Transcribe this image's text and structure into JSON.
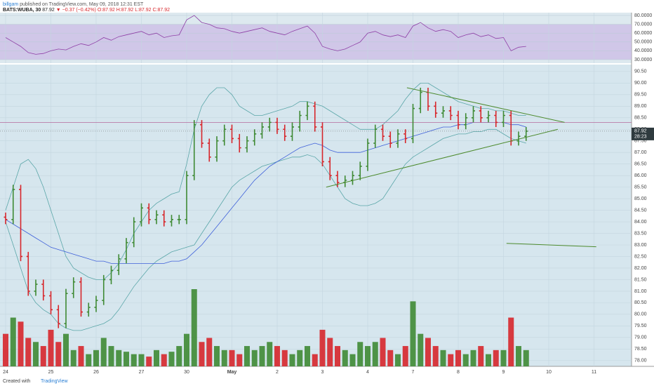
{
  "header": {
    "author": "billgam",
    "published": "published on TradingView.com, May 09, 2018 12:31 EST",
    "symbol": "BATS:WUBA, 30",
    "price": "87.92",
    "arrow": "▼",
    "change": "−0.37 (−0.42%)",
    "ohlc": "O:87.92 H:87.92 L:87.92 C:87.92"
  },
  "footer": {
    "created": "Created with",
    "brand": "TradingView"
  },
  "chart_data": {
    "type": "ohlc",
    "categories": [
      "24",
      null,
      null,
      null,
      null,
      null,
      "25",
      null,
      null,
      null,
      null,
      null,
      "26",
      null,
      null,
      null,
      null,
      null,
      "27",
      null,
      null,
      null,
      null,
      null,
      "30",
      null,
      null,
      null,
      null,
      null,
      "May",
      null,
      null,
      null,
      null,
      null,
      "2",
      null,
      null,
      null,
      null,
      null,
      "3",
      null,
      null,
      null,
      null,
      null,
      "4",
      null,
      null,
      null,
      null,
      null,
      "7",
      null,
      null,
      null,
      null,
      null,
      "8",
      null,
      null,
      null,
      null,
      null,
      "9",
      null,
      null,
      null,
      null,
      null,
      "10",
      null,
      null,
      null,
      null,
      null,
      "11",
      null,
      null,
      null,
      null,
      null
    ],
    "open": [
      84.2,
      84.1,
      85.4,
      82.5,
      81.0,
      81.3,
      80.8,
      80.2,
      79.6,
      80.9,
      81.4,
      80.1,
      80.3,
      80.6,
      81.5,
      81.9,
      82.4,
      83.1,
      84.0,
      84.6,
      84.1,
      84.3,
      84.0,
      84.1,
      84.1,
      86.0,
      88.2,
      87.4,
      86.8,
      87.5,
      88.0,
      87.6,
      87.2,
      87.5,
      87.8,
      88.1,
      88.3,
      88.0,
      87.7,
      88.1,
      88.6,
      89.0,
      88.1,
      86.6,
      86.0,
      85.7,
      85.8,
      86.0,
      86.4,
      87.4,
      88.0,
      87.7,
      87.4,
      87.8,
      87.6,
      88.9,
      89.6,
      89.0,
      88.7,
      88.8,
      88.6,
      88.2,
      88.5,
      88.8,
      88.5,
      88.6,
      88.3,
      88.6,
      87.5,
      87.7,
      null,
      null,
      null,
      null,
      null,
      null,
      null,
      null,
      null,
      null,
      null,
      null,
      null,
      null
    ],
    "high": [
      84.4,
      85.6,
      85.6,
      82.7,
      81.5,
      81.5,
      81.0,
      80.4,
      81.1,
      81.6,
      81.6,
      80.5,
      80.8,
      81.7,
      82.1,
      82.6,
      83.3,
      84.2,
      84.8,
      84.8,
      84.5,
      84.5,
      84.3,
      84.3,
      86.2,
      88.4,
      88.4,
      87.6,
      87.7,
      88.2,
      88.2,
      87.8,
      87.7,
      88.0,
      88.3,
      88.5,
      88.5,
      88.2,
      88.3,
      88.8,
      89.2,
      89.2,
      88.3,
      86.8,
      86.2,
      86.0,
      86.2,
      86.6,
      87.6,
      88.2,
      88.2,
      87.9,
      88.0,
      88.0,
      89.1,
      89.8,
      89.8,
      89.2,
      89.0,
      89.0,
      88.8,
      88.7,
      89.0,
      89.0,
      88.8,
      88.8,
      88.8,
      88.8,
      87.9,
      88.1,
      null,
      null,
      null,
      null,
      null,
      null,
      null,
      null,
      null,
      null,
      null,
      null,
      null,
      null
    ],
    "low": [
      83.9,
      83.9,
      82.3,
      80.8,
      80.8,
      80.6,
      80.0,
      79.4,
      79.4,
      80.7,
      79.9,
      79.9,
      80.1,
      80.4,
      81.3,
      81.7,
      82.2,
      82.9,
      83.8,
      83.9,
      83.9,
      83.8,
      83.8,
      83.9,
      83.9,
      85.8,
      87.2,
      86.6,
      86.6,
      87.3,
      87.4,
      87.0,
      87.0,
      87.3,
      87.6,
      87.9,
      87.8,
      87.5,
      87.5,
      87.9,
      88.4,
      87.9,
      86.4,
      85.8,
      85.5,
      85.5,
      85.6,
      85.8,
      86.2,
      87.2,
      87.5,
      87.2,
      87.2,
      87.4,
      87.4,
      88.7,
      88.8,
      88.5,
      88.5,
      88.4,
      88.0,
      88.0,
      88.3,
      88.3,
      88.3,
      88.1,
      88.1,
      87.3,
      87.3,
      87.5,
      null,
      null,
      null,
      null,
      null,
      null,
      null,
      null,
      null,
      null,
      null,
      null,
      null,
      null
    ],
    "close": [
      84.1,
      85.4,
      82.5,
      81.0,
      81.3,
      80.8,
      80.2,
      79.6,
      80.9,
      81.4,
      80.1,
      80.3,
      80.6,
      81.5,
      81.9,
      82.4,
      83.1,
      84.0,
      84.6,
      84.1,
      84.3,
      84.0,
      84.1,
      84.1,
      86.0,
      88.2,
      87.4,
      86.8,
      87.5,
      88.0,
      87.6,
      87.2,
      87.5,
      87.8,
      88.1,
      88.3,
      88.0,
      87.7,
      88.1,
      88.6,
      89.0,
      88.1,
      86.6,
      86.0,
      85.7,
      85.8,
      86.0,
      86.4,
      87.4,
      88.0,
      87.7,
      87.4,
      87.8,
      87.6,
      88.9,
      89.6,
      89.0,
      88.7,
      88.8,
      88.6,
      88.2,
      88.5,
      88.8,
      88.5,
      88.6,
      88.3,
      88.6,
      87.5,
      87.7,
      87.92,
      null,
      null,
      null,
      null,
      null,
      null,
      null,
      null,
      null,
      null,
      null,
      null,
      null,
      null
    ],
    "volume": [
      40,
      60,
      55,
      35,
      30,
      25,
      45,
      30,
      40,
      20,
      25,
      15,
      20,
      35,
      25,
      20,
      18,
      15,
      15,
      12,
      20,
      15,
      18,
      25,
      40,
      95,
      30,
      35,
      25,
      20,
      20,
      15,
      25,
      20,
      25,
      30,
      25,
      20,
      15,
      20,
      25,
      15,
      45,
      35,
      25,
      20,
      15,
      30,
      25,
      30,
      35,
      20,
      15,
      25,
      80,
      40,
      35,
      25,
      20,
      15,
      20,
      15,
      20,
      25,
      15,
      20,
      20,
      60,
      25,
      20,
      null,
      null,
      null,
      null,
      null,
      null,
      null,
      null,
      null,
      null,
      null,
      null,
      null,
      null
    ],
    "upper_band": [
      84.5,
      85.5,
      86.5,
      86.7,
      86.3,
      85.5,
      84.5,
      83.5,
      82.5,
      82,
      81.8,
      81.6,
      81.5,
      81.5,
      81.8,
      82.2,
      82.8,
      83.5,
      84.0,
      84.5,
      84.8,
      85,
      85.2,
      85.3,
      86.5,
      88,
      89,
      89.5,
      89.8,
      89.8,
      89.5,
      89,
      88.8,
      88.6,
      88.6,
      88.7,
      88.8,
      88.9,
      89,
      89.2,
      89.2,
      89.1,
      89,
      88.8,
      88.6,
      88.4,
      88.2,
      88,
      88,
      88,
      88.2,
      88.5,
      88.8,
      89.3,
      89.7,
      90,
      90,
      89.8,
      89.6,
      89.4,
      89.2,
      89.1,
      89,
      88.9,
      88.9,
      88.8,
      88.8,
      88.7,
      88.6,
      88.6,
      null,
      null,
      null,
      null,
      null,
      null,
      null,
      null,
      null,
      null,
      null,
      null,
      null,
      null
    ],
    "lower_band": [
      84,
      83,
      82,
      81,
      80.5,
      80.2,
      80,
      79.6,
      79.4,
      79.3,
      79.3,
      79.4,
      79.5,
      79.6,
      79.8,
      80.2,
      80.7,
      81.2,
      81.6,
      82,
      82.3,
      82.5,
      82.7,
      82.8,
      82.9,
      83,
      83.5,
      84,
      84.5,
      85,
      85.5,
      85.8,
      86,
      86.2,
      86.4,
      86.5,
      86.6,
      86.7,
      86.8,
      86.8,
      86.9,
      86.8,
      86.5,
      86,
      85.5,
      85,
      84.8,
      84.7,
      84.7,
      84.8,
      85,
      85.5,
      86,
      86.5,
      86.8,
      87,
      87.2,
      87.4,
      87.6,
      87.7,
      87.8,
      87.8,
      87.9,
      87.9,
      88,
      88,
      87.8,
      87.6,
      87.5,
      87.4,
      null,
      null,
      null,
      null,
      null,
      null,
      null,
      null,
      null,
      null,
      null,
      null,
      null,
      null
    ],
    "moving_average": [
      84.1,
      83.9,
      83.7,
      83.5,
      83.3,
      83.1,
      82.9,
      82.8,
      82.7,
      82.6,
      82.5,
      82.4,
      82.3,
      82.3,
      82.2,
      82.2,
      82.2,
      82.2,
      82.2,
      82.2,
      82.2,
      82.2,
      82.3,
      82.3,
      82.4,
      82.7,
      83,
      83.4,
      83.8,
      84.2,
      84.6,
      85,
      85.4,
      85.8,
      86.1,
      86.4,
      86.6,
      86.8,
      87,
      87.2,
      87.3,
      87.4,
      87.3,
      87.1,
      87,
      87,
      87,
      87,
      87.1,
      87.2,
      87.3,
      87.4,
      87.5,
      87.6,
      87.7,
      87.8,
      87.9,
      88,
      88.1,
      88.1,
      88.2,
      88.2,
      88.3,
      88.3,
      88.3,
      88.3,
      88.3,
      88.2,
      88.2,
      88.1,
      null,
      null,
      null,
      null,
      null,
      null,
      null,
      null,
      null,
      null,
      null,
      null,
      null,
      null
    ],
    "rsi": [
      55,
      50,
      45,
      38,
      36,
      37,
      40,
      42,
      41,
      45,
      48,
      46,
      50,
      55,
      52,
      56,
      58,
      60,
      62,
      58,
      60,
      55,
      57,
      58,
      75,
      80,
      72,
      70,
      66,
      65,
      62,
      60,
      62,
      64,
      66,
      62,
      60,
      58,
      62,
      65,
      68,
      60,
      45,
      42,
      40,
      42,
      46,
      50,
      60,
      62,
      58,
      56,
      58,
      55,
      68,
      72,
      66,
      62,
      64,
      62,
      55,
      58,
      60,
      56,
      58,
      54,
      55,
      40,
      44,
      45,
      null,
      null,
      null,
      null,
      null,
      null,
      null,
      null,
      null,
      null,
      null,
      null,
      null,
      null
    ],
    "up_color": "#3f8a34",
    "down_color": "#d7262b",
    "band_color": "#5aa6a8",
    "ma_color": "#3d5fd9",
    "rsi_color": "#8e3fa6",
    "trend_color": "#4d8b2e",
    "hline_color": "#b56a9b",
    "ylim": [
      77.75,
      90.8
    ],
    "yticks": [
      {
        "value": 90.5,
        "label": "90.50"
      },
      {
        "value": 90,
        "label": "90.00"
      },
      {
        "value": 89.5,
        "label": "89.50"
      },
      {
        "value": 89,
        "label": "89.00"
      },
      {
        "value": 88.5,
        "label": "88.50"
      },
      {
        "value": 88,
        "label": "88.00"
      },
      {
        "value": 87.5,
        "label": "87.50"
      },
      {
        "value": 87,
        "label": "87.00"
      },
      {
        "value": 86.5,
        "label": "86.50"
      },
      {
        "value": 86,
        "label": "86.00"
      },
      {
        "value": 85.5,
        "label": "85.50"
      },
      {
        "value": 85,
        "label": "85.00"
      },
      {
        "value": 84.5,
        "label": "84.50"
      },
      {
        "value": 84,
        "label": "84.00"
      },
      {
        "value": 83.5,
        "label": "83.50"
      },
      {
        "value": 83,
        "label": "83.00"
      },
      {
        "value": 82.5,
        "label": "82.50"
      },
      {
        "value": 82,
        "label": "82.00"
      },
      {
        "value": 81.5,
        "label": "81.50"
      },
      {
        "value": 81,
        "label": "81.00"
      },
      {
        "value": 80.5,
        "label": "80.50"
      },
      {
        "value": 80,
        "label": "80.00"
      },
      {
        "value": 79.5,
        "label": "79.50"
      },
      {
        "value": 79,
        "label": "79.00"
      },
      {
        "value": 78.5,
        "label": "78.50"
      },
      {
        "value": 78,
        "label": "78.00"
      }
    ],
    "rsi_ylim": [
      26,
      83.2
    ],
    "rsi_yticks": [
      {
        "value": 80,
        "label": "80.0000"
      },
      {
        "value": 70,
        "label": "70.0000"
      },
      {
        "value": 60,
        "label": "60.0000"
      },
      {
        "value": 50,
        "label": "50.0000"
      },
      {
        "value": 40,
        "label": "40.0000"
      },
      {
        "value": 30,
        "label": "30.0000"
      }
    ],
    "rsi_band": [
      30,
      70
    ],
    "trendlines": [
      {
        "x": [
          53.2,
          74.1
        ],
        "y": [
          89.8,
          88.3
        ]
      },
      {
        "x": [
          42.5,
          73.2
        ],
        "y": [
          85.5,
          88.0
        ]
      },
      {
        "x": [
          66.4,
          78.3
        ],
        "y": [
          83.07,
          82.92
        ]
      }
    ],
    "hline": 88.3,
    "last_price": {
      "value": 87.92,
      "label": "87.92"
    },
    "countdown": "28:23",
    "grid": true
  }
}
